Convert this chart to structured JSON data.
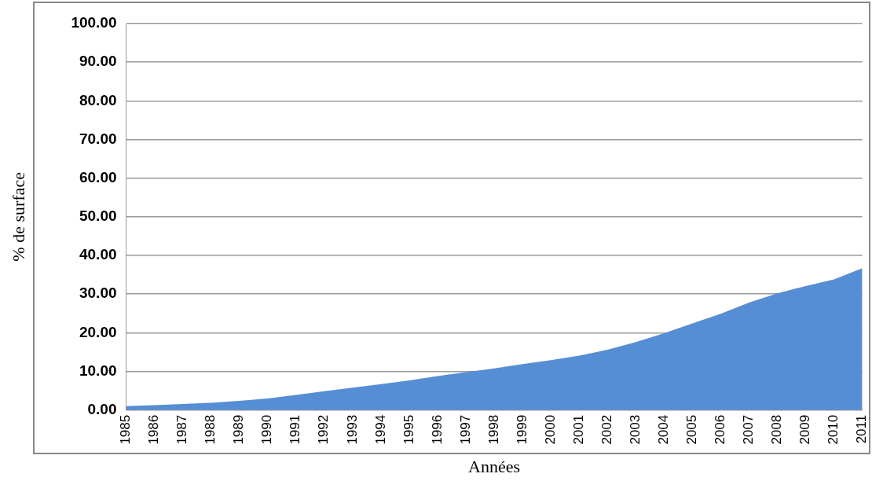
{
  "chart_data": {
    "type": "area",
    "xlabel": "Années",
    "ylabel": "% de surface",
    "categories": [
      "1985",
      "1986",
      "1987",
      "1988",
      "1989",
      "1990",
      "1991",
      "1992",
      "1993",
      "1994",
      "1995",
      "1996",
      "1997",
      "1998",
      "1999",
      "2000",
      "2001",
      "2002",
      "2003",
      "2004",
      "2005",
      "2006",
      "2007",
      "2008",
      "2009",
      "2010",
      "2011"
    ],
    "series": [
      {
        "color": "#558ed5",
        "values": [
          1.0,
          1.3,
          1.6,
          1.9,
          2.4,
          3.0,
          3.9,
          4.9,
          5.8,
          6.7,
          7.7,
          8.8,
          9.8,
          10.8,
          11.9,
          12.9,
          14.1,
          15.6,
          17.6,
          19.9,
          22.4,
          24.9,
          27.8,
          30.2,
          32.1,
          33.8,
          36.7
        ]
      }
    ],
    "ylim": [
      0,
      100
    ],
    "yticks": [
      {
        "value": 0,
        "label": "0.00"
      },
      {
        "value": 10,
        "label": "10.00"
      },
      {
        "value": 20,
        "label": "20.00"
      },
      {
        "value": 30,
        "label": "30.00"
      },
      {
        "value": 40,
        "label": "40.00"
      },
      {
        "value": 50,
        "label": "50.00"
      },
      {
        "value": 60,
        "label": "60.00"
      },
      {
        "value": 70,
        "label": "70.00"
      },
      {
        "value": 80,
        "label": "80.00"
      },
      {
        "value": 90,
        "label": "90.00"
      },
      {
        "value": 100,
        "label": "100.00"
      }
    ],
    "grid": "y",
    "legend": false
  }
}
